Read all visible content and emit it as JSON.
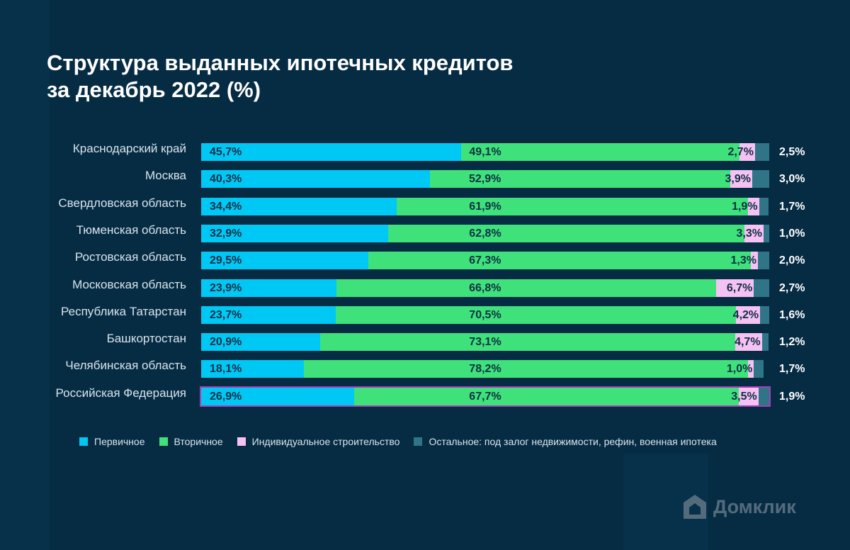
{
  "chart_data": {
    "type": "bar",
    "orientation": "horizontal",
    "stacked": true,
    "title": "Структура выданных ипотечных кредитов",
    "subtitle": "за декабрь 2022 (%)",
    "categories": [
      "Краснодарский край",
      "Москва",
      "Свердловская область",
      "Тюменская область",
      "Ростовская область",
      "Московская область",
      "Республика Татарстан",
      "Башкортостан",
      "Челябинская область",
      "Российская Федерация"
    ],
    "series": [
      {
        "name": "Первичное",
        "color": "#00c8f5",
        "values": [
          45.7,
          40.3,
          34.4,
          32.9,
          29.5,
          23.9,
          23.7,
          20.9,
          18.1,
          26.9
        ],
        "labels": [
          "45,7%",
          "40,3%",
          "34,4%",
          "32,9%",
          "29,5%",
          "23,9%",
          "23,7%",
          "20,9%",
          "18,1%",
          "26,9%"
        ]
      },
      {
        "name": "Вторичное",
        "color": "#3fe27a",
        "values": [
          49.1,
          52.9,
          61.9,
          62.8,
          67.3,
          66.8,
          70.5,
          73.1,
          78.2,
          67.7
        ],
        "labels": [
          "49,1%",
          "52,9%",
          "61,9%",
          "62,8%",
          "67,3%",
          "66,8%",
          "70,5%",
          "73,1%",
          "78,2%",
          "67,7%"
        ]
      },
      {
        "name": "Индивидуальное строительство",
        "color": "#f6c2f3",
        "values": [
          2.7,
          3.9,
          1.9,
          3.3,
          1.3,
          6.7,
          4.2,
          4.7,
          1.0,
          3.5
        ],
        "labels": [
          "2,7%",
          "3,9%",
          "1,9%",
          "3,3%",
          "1,3%",
          "6,7%",
          "4,2%",
          "4,7%",
          "1,0%",
          "3,5%"
        ]
      },
      {
        "name": "Остальное: под залог недвижимости, рефин, военная ипотека",
        "color": "#2f7487",
        "values": [
          2.5,
          3.0,
          1.7,
          1.0,
          2.0,
          2.7,
          1.6,
          1.2,
          1.7,
          1.9
        ],
        "labels": [
          "2,5%",
          "3,0%",
          "1,7%",
          "1,0%",
          "2,0%",
          "2,7%",
          "1,6%",
          "1,2%",
          "1,7%",
          "1,9%"
        ]
      }
    ],
    "highlighted_category": "Российская Федерация",
    "highlight_color": "#a53fb4",
    "xlim": [
      0,
      100
    ],
    "grid": false,
    "legend_position": "bottom"
  },
  "logo": {
    "text": "Домклик",
    "icon": "house-icon"
  }
}
